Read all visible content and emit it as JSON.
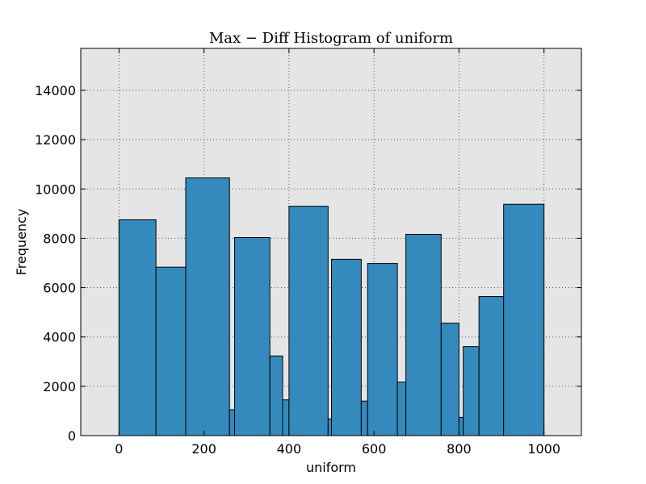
{
  "chart_data": {
    "type": "bar",
    "title": "Max − Diff Histogram of uniform",
    "xlabel": "uniform",
    "ylabel": "Frequency",
    "xlim": [
      -90,
      1088
    ],
    "ylim": [
      0,
      15700
    ],
    "xticks": [
      0,
      200,
      400,
      600,
      800,
      1000
    ],
    "yticks": [
      0,
      2000,
      4000,
      6000,
      8000,
      10000,
      12000,
      14000
    ],
    "grid": true,
    "bar_color": "#348ABD",
    "background_color": "#E5E5E5",
    "bins": [
      {
        "x0": 0,
        "x1": 87,
        "value": 8750
      },
      {
        "x0": 87,
        "x1": 157,
        "value": 6830
      },
      {
        "x0": 157,
        "x1": 260,
        "value": 10450
      },
      {
        "x0": 260,
        "x1": 272,
        "value": 1050
      },
      {
        "x0": 272,
        "x1": 355,
        "value": 8030
      },
      {
        "x0": 355,
        "x1": 385,
        "value": 3230
      },
      {
        "x0": 385,
        "x1": 400,
        "value": 1450
      },
      {
        "x0": 400,
        "x1": 492,
        "value": 9300
      },
      {
        "x0": 492,
        "x1": 500,
        "value": 680
      },
      {
        "x0": 500,
        "x1": 570,
        "value": 7150
      },
      {
        "x0": 570,
        "x1": 585,
        "value": 1400
      },
      {
        "x0": 585,
        "x1": 655,
        "value": 6980
      },
      {
        "x0": 655,
        "x1": 675,
        "value": 2170
      },
      {
        "x0": 675,
        "x1": 758,
        "value": 8160
      },
      {
        "x0": 758,
        "x1": 800,
        "value": 4560
      },
      {
        "x0": 800,
        "x1": 810,
        "value": 740
      },
      {
        "x0": 810,
        "x1": 847,
        "value": 3610
      },
      {
        "x0": 847,
        "x1": 905,
        "value": 5640
      },
      {
        "x0": 905,
        "x1": 1000,
        "value": 9380
      }
    ]
  }
}
